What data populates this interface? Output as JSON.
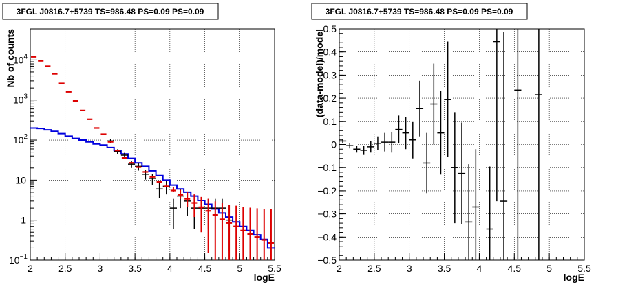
{
  "colors": {
    "data": "#000000",
    "model": "#dd0000",
    "model_pointsource": "#0000dd",
    "frame": "#000000",
    "grid": "#000000"
  },
  "chart_data": [
    {
      "type": "scatter",
      "title": "3FGL J0816.7+5739 TS=986.48 PS=0.09 PS=0.09",
      "xlabel": "logE",
      "ylabel": "Nb of counts",
      "xlim": [
        2,
        5.5
      ],
      "ylim": [
        0.1,
        60000
      ],
      "yscale": "log",
      "grid": true,
      "x_ticks": [
        "2",
        "2.5",
        "3",
        "3.5",
        "4",
        "4.5",
        "5",
        "5.5"
      ],
      "y_ticks": [
        "10",
        "1",
        "10"
      ],
      "y_ticks_sup": [
        "−1",
        "",
        "4"
      ],
      "y_tick_labels": [
        {
          "base": "10",
          "exp": "−1"
        },
        {
          "base": "1",
          "exp": ""
        },
        {
          "base": "10",
          "exp": ""
        },
        {
          "base": "10",
          "exp": "2"
        },
        {
          "base": "10",
          "exp": "3"
        },
        {
          "base": "10",
          "exp": "4"
        }
      ],
      "series": [
        {
          "style": "step",
          "color": "#0000dd",
          "x": [
            2.0,
            2.1,
            2.2,
            2.3,
            2.4,
            2.5,
            2.6,
            2.7,
            2.8,
            2.9,
            3.0,
            3.1,
            3.2,
            3.3,
            3.4,
            3.5,
            3.6,
            3.7,
            3.8,
            3.9,
            4.0,
            4.1,
            4.2,
            4.3,
            4.4,
            4.5,
            4.6,
            4.7,
            4.8,
            4.9,
            5.0,
            5.1,
            5.2,
            5.3,
            5.4
          ],
          "values": [
            200,
            195,
            180,
            165,
            145,
            125,
            110,
            100,
            90,
            80,
            75,
            65,
            55,
            45,
            35,
            27,
            22,
            17,
            13,
            10,
            7.5,
            6,
            5,
            4,
            3.1,
            2.5,
            1.9,
            1.5,
            1.2,
            0.9,
            0.7,
            0.55,
            0.43,
            0.33,
            0.2
          ]
        },
        {
          "style": "markers",
          "color": "#dd0000",
          "x": [
            2.05,
            2.15,
            2.25,
            2.35,
            2.45,
            2.55,
            2.65,
            2.75,
            2.85,
            2.95,
            3.05,
            3.15,
            3.25,
            3.35,
            3.45,
            3.55,
            3.65,
            3.75,
            3.85,
            3.95,
            4.05,
            4.15,
            4.25,
            4.35,
            4.45,
            4.55,
            4.65,
            4.75,
            4.85,
            4.95,
            5.05,
            5.15,
            5.25,
            5.35,
            5.45
          ],
          "values": [
            12000,
            9500,
            7000,
            4500,
            2600,
            1600,
            950,
            550,
            330,
            200,
            140,
            90,
            55,
            36,
            27,
            21,
            16,
            12,
            9,
            7,
            5.5,
            4.3,
            3.4,
            2.7,
            2.1,
            1.7,
            1.35,
            1.05,
            0.85,
            0.7,
            0.55,
            0.45,
            0.38,
            0.32,
            0.27
          ],
          "err_low": [
            0,
            0,
            0,
            0,
            0,
            0,
            0,
            0,
            0,
            0,
            0,
            0,
            0,
            0,
            0,
            0,
            0,
            0,
            0,
            0.2,
            0.45,
            0.9,
            1.3,
            1.5,
            1.6,
            1.55,
            1.3,
            1.0,
            0.8,
            0.65,
            0.5,
            0.4,
            0.35,
            0.3,
            0.25
          ],
          "err_high": [
            0,
            0,
            0,
            0,
            0,
            0,
            0,
            0,
            0,
            0,
            0,
            0,
            0,
            0,
            0,
            0,
            0,
            0,
            0,
            0.8,
            1.2,
            1.4,
            1.6,
            1.7,
            1.7,
            1.7,
            1.6,
            1.6,
            1.6,
            1.6,
            1.6,
            1.6,
            1.6,
            1.6,
            1.6
          ]
        },
        {
          "style": "errorbars",
          "color": "#000000",
          "x": [
            3.15,
            3.25,
            3.35,
            3.45,
            3.55,
            3.65,
            3.75,
            3.85,
            3.95,
            4.05,
            4.15,
            4.25,
            4.35,
            4.45,
            4.55,
            4.65,
            4.75,
            4.85
          ],
          "values": [
            95,
            52,
            42,
            25,
            22,
            14,
            11,
            6,
            7,
            2,
            4,
            3,
            2,
            2,
            2,
            2,
            2,
            1
          ],
          "err_low": [
            10,
            7,
            6,
            5,
            4.7,
            3.7,
            3.3,
            2.4,
            2.6,
            1.4,
            2,
            1.7,
            1.4,
            1.4,
            1.4,
            1.4,
            1.4,
            0.83
          ],
          "err_high": [
            10,
            7,
            6,
            5,
            4.7,
            3.7,
            3.3,
            2.4,
            2.6,
            1.4,
            2,
            1.7,
            1.4,
            1.4,
            1.4,
            1.4,
            1.4,
            1.4
          ]
        }
      ]
    },
    {
      "type": "scatter",
      "title": "3FGL J0816.7+5739 TS=986.48 PS=0.09 PS=0.09",
      "xlabel": "logE",
      "ylabel": "(data-model)/model",
      "xlim": [
        2,
        5.5
      ],
      "ylim": [
        -0.5,
        0.5
      ],
      "grid": true,
      "x_ticks": [
        "2",
        "2.5",
        "3",
        "3.5",
        "4",
        "4.5",
        "5",
        "5.5"
      ],
      "y_ticks": [
        "−0.5",
        "−0.4",
        "−0.3",
        "−0.2",
        "−0.1",
        "0",
        "0.1",
        "0.2",
        "0.3",
        "0.4",
        "0.5"
      ],
      "series": [
        {
          "style": "errorbars",
          "color": "#000000",
          "x": [
            2.05,
            2.15,
            2.25,
            2.35,
            2.45,
            2.55,
            2.65,
            2.75,
            2.85,
            2.95,
            3.05,
            3.15,
            3.25,
            3.35,
            3.45,
            3.55,
            3.65,
            3.75,
            3.85,
            3.95,
            4.15,
            4.25,
            4.35,
            4.55,
            4.85
          ],
          "values": [
            0.015,
            -0.005,
            -0.02,
            -0.025,
            -0.01,
            0.005,
            0.01,
            0.01,
            0.065,
            0.05,
            0.02,
            0.155,
            -0.08,
            0.175,
            0.05,
            0.195,
            -0.1,
            -0.125,
            -0.335,
            -0.27,
            -0.365,
            0.445,
            -0.245,
            0.235,
            0.215
          ],
          "err": [
            0.01,
            0.012,
            0.015,
            0.02,
            0.025,
            0.03,
            0.04,
            0.045,
            0.06,
            0.07,
            0.08,
            0.12,
            0.13,
            0.175,
            0.18,
            0.25,
            0.24,
            0.22,
            0.25,
            0.25,
            0.27,
            0.69,
            0.73,
            0.73,
            0.73
          ]
        }
      ]
    }
  ]
}
